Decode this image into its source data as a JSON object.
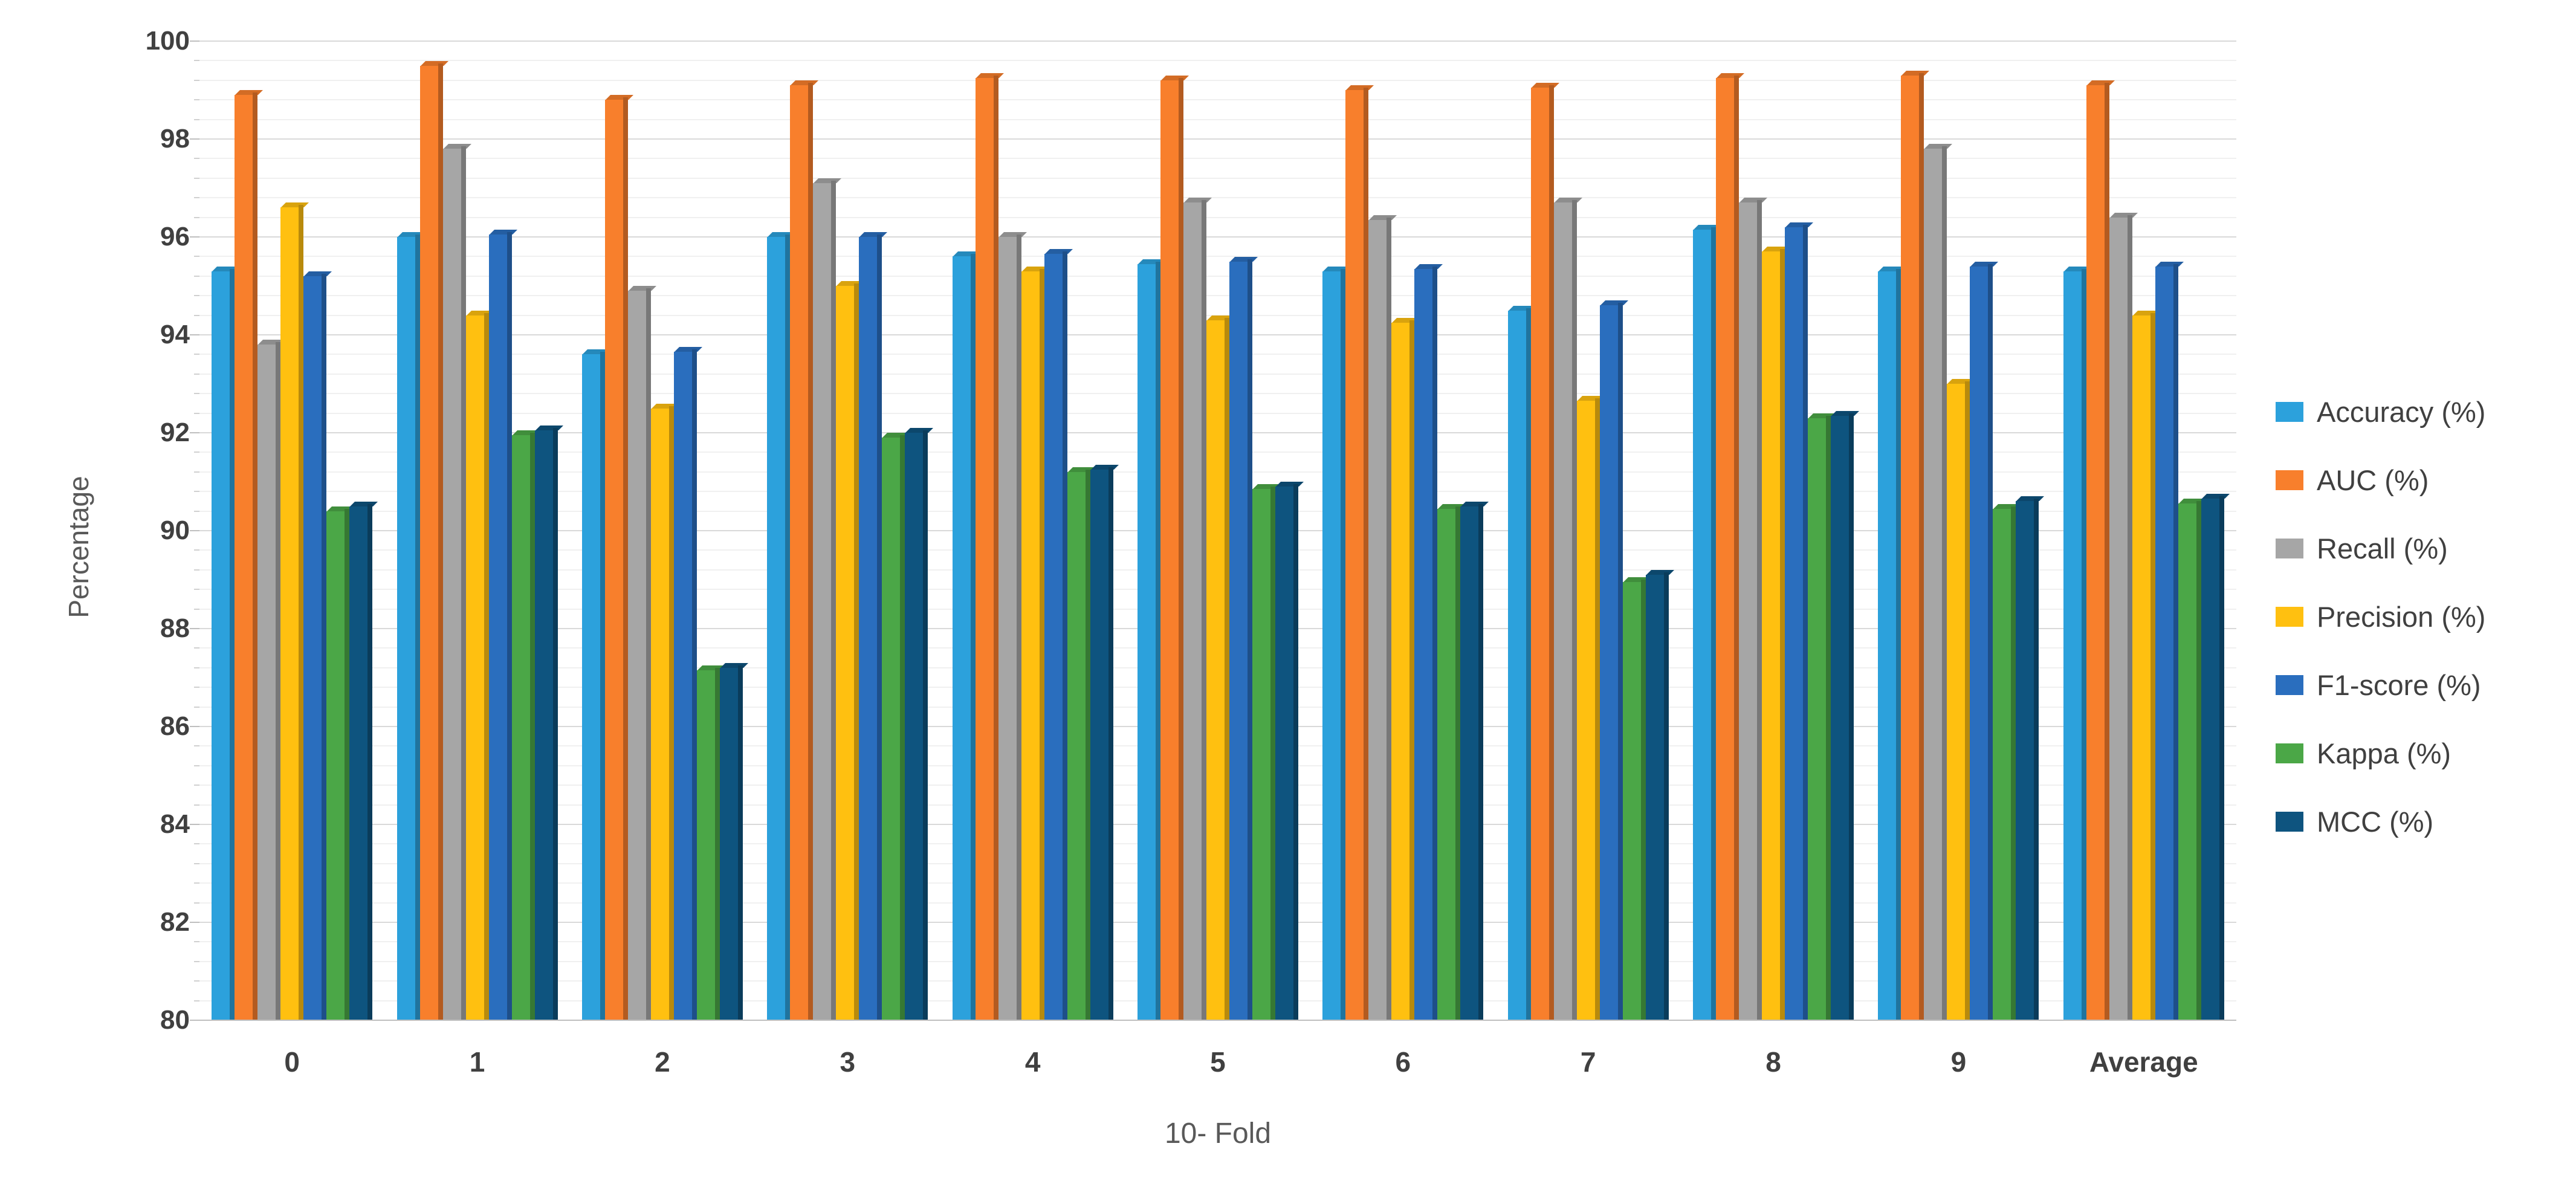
{
  "chart": {
    "y_axis_title": "Percentage",
    "x_axis_title": "10- Fold"
  },
  "chart_data": {
    "type": "bar",
    "title": "",
    "xlabel": "10- Fold",
    "ylabel": "Percentage",
    "ylim": [
      80,
      100
    ],
    "ytick_step": 2,
    "minor_gridline_step": 0.4,
    "yticks": [
      80,
      82,
      84,
      86,
      88,
      90,
      92,
      94,
      96,
      98,
      100
    ],
    "grid": true,
    "legend_position": "right",
    "categories": [
      "0",
      "1",
      "2",
      "3",
      "4",
      "5",
      "6",
      "7",
      "8",
      "9",
      "Average"
    ],
    "series": [
      {
        "name": "Accuracy (%)",
        "color": "#2CA1DC",
        "values": [
          95.3,
          96.0,
          93.6,
          96.0,
          95.6,
          95.45,
          95.3,
          94.5,
          96.15,
          95.3,
          95.3
        ]
      },
      {
        "name": "AUC (%)",
        "color": "#F87F2C",
        "values": [
          98.9,
          99.5,
          98.8,
          99.1,
          99.25,
          99.2,
          99.0,
          99.05,
          99.25,
          99.3,
          99.1
        ]
      },
      {
        "name": "Recall (%)",
        "color": "#A6A6A6",
        "values": [
          93.8,
          97.8,
          94.9,
          97.1,
          96.0,
          96.7,
          96.35,
          96.7,
          96.7,
          97.8,
          96.4
        ]
      },
      {
        "name": "Precision (%)",
        "color": "#FFC010",
        "values": [
          96.6,
          94.4,
          92.5,
          95.0,
          95.3,
          94.3,
          94.25,
          92.65,
          95.7,
          93.0,
          94.4
        ]
      },
      {
        "name": "F1-score (%)",
        "color": "#2A6EBE",
        "values": [
          95.2,
          96.05,
          93.65,
          96.0,
          95.65,
          95.5,
          95.35,
          94.6,
          96.2,
          95.4,
          95.4
        ]
      },
      {
        "name": "Kappa (%)",
        "color": "#4BA747",
        "values": [
          90.4,
          91.95,
          87.15,
          91.9,
          91.2,
          90.85,
          90.45,
          88.95,
          92.3,
          90.45,
          90.55
        ]
      },
      {
        "name": "MCC (%)",
        "color": "#0E547F",
        "values": [
          90.5,
          92.05,
          87.2,
          92.0,
          91.25,
          90.9,
          90.5,
          89.1,
          92.35,
          90.6,
          90.65
        ]
      }
    ]
  }
}
